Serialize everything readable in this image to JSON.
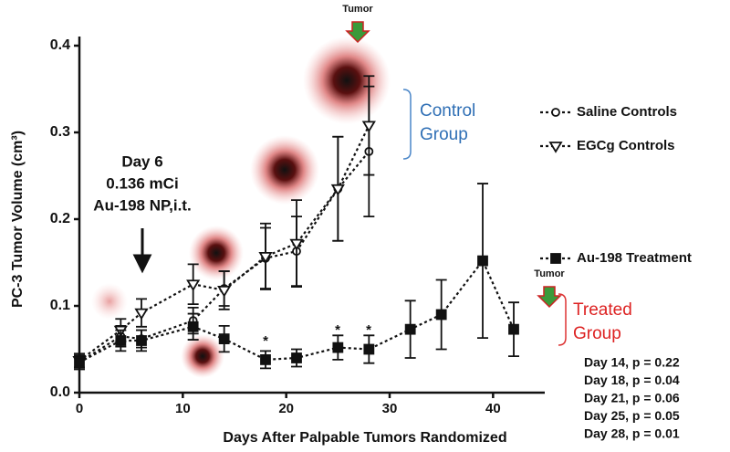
{
  "chart_data": {
    "type": "line",
    "xlabel": "Days After Palpable Tumors Randomized",
    "ylabel": "PC-3 Tumor Volume (cm³)",
    "xlim": [
      0,
      45
    ],
    "ylim": [
      0,
      0.4
    ],
    "xticks": [
      0,
      10,
      20,
      30,
      40
    ],
    "yticks": [
      {
        "value": 0,
        "label": "0.0"
      },
      0.1,
      0.2,
      0.3,
      0.4
    ],
    "series": [
      {
        "name": "Saline Controls",
        "color": "#111111",
        "marker": "circle",
        "x": [
          0,
          4,
          6,
          11,
          14,
          18,
          21,
          25,
          28
        ],
        "values": [
          0.035,
          0.065,
          0.062,
          0.083,
          0.12,
          0.155,
          0.163,
          0.235,
          0.278
        ],
        "errors": [
          0.008,
          0.012,
          0.01,
          0.015,
          0.02,
          0.035,
          0.04,
          0.06,
          0.075
        ]
      },
      {
        "name": "EGCg  Controls",
        "color": "#111111",
        "marker": "triangle-down",
        "x": [
          0,
          4,
          6,
          11,
          14,
          18,
          21,
          25,
          28
        ],
        "values": [
          0.037,
          0.072,
          0.092,
          0.125,
          0.118,
          0.157,
          0.172,
          0.235,
          0.308
        ],
        "errors": [
          0.008,
          0.013,
          0.016,
          0.023,
          0.022,
          0.038,
          0.05,
          0.06,
          0.057
        ]
      },
      {
        "name": "Au-198 Treatment",
        "color": "#111111",
        "marker": "square",
        "x": [
          0,
          4,
          6,
          11,
          14,
          18,
          21,
          25,
          28,
          32,
          35,
          39,
          42
        ],
        "values": [
          0.035,
          0.06,
          0.06,
          0.076,
          0.062,
          0.038,
          0.04,
          0.052,
          0.05,
          0.073,
          0.09,
          0.152,
          0.073
        ],
        "errors": [
          0.008,
          0.012,
          0.012,
          0.015,
          0.015,
          0.01,
          0.01,
          0.014,
          0.016,
          0.033,
          0.04,
          0.089,
          0.031
        ]
      }
    ],
    "annotations": {
      "tumor": "Tumor",
      "dose_day": "Day 6",
      "dose_amount": "0.136 mCi",
      "dose_agent": "Au-198 NP,i.t.",
      "control_group": [
        "Control",
        "Group"
      ],
      "treated_group": [
        "Treated",
        "Group"
      ],
      "asterisk": "*",
      "p_values": [
        "Day 14, p = 0.22",
        "Day 18, p = 0.04",
        "Day 21, p = 0.06",
        "Day 25, p = 0.05",
        "Day 28, p = 0.01"
      ]
    }
  }
}
